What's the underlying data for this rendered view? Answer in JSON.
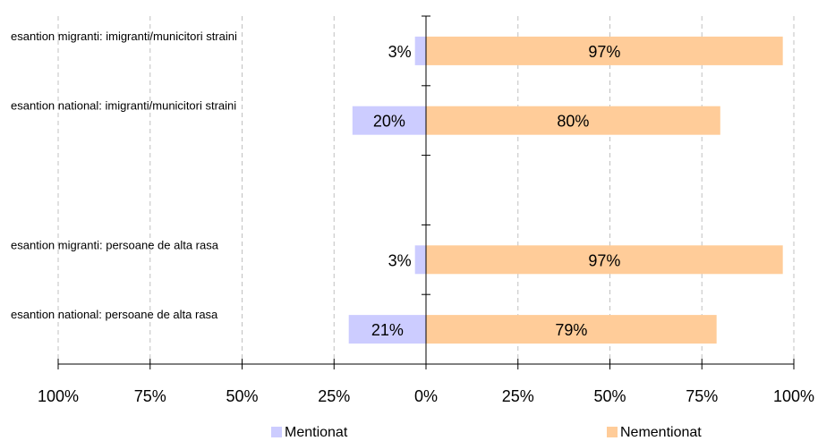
{
  "chart_data": {
    "type": "bar",
    "orientation": "horizontal-diverging",
    "categories": [
      "esantion migranti: imigranti/municitori straini",
      "esantion national: imigranti/municitori straini",
      "",
      "esantion migranti: persoane de alta rasa",
      "esantion national: persoane de alta rasa"
    ],
    "series": [
      {
        "name": "Mentionat",
        "color": "#ccccff",
        "values": [
          3,
          20,
          null,
          3,
          21
        ]
      },
      {
        "name": "Nementionat",
        "color": "#ffcc99",
        "values": [
          97,
          80,
          null,
          97,
          79
        ]
      }
    ],
    "value_labels": {
      "Mentionat": [
        "3%",
        "20%",
        "",
        "3%",
        "21%"
      ],
      "Nementionat": [
        "97%",
        "80%",
        "",
        "97%",
        "79%"
      ]
    },
    "x_ticks": [
      -100,
      -75,
      -50,
      -25,
      0,
      25,
      50,
      75,
      100
    ],
    "x_tick_labels": [
      "100%",
      "75%",
      "50%",
      "25%",
      "0%",
      "25%",
      "50%",
      "75%",
      "100%"
    ],
    "xlim": [
      -100,
      100
    ],
    "title": "",
    "xlabel": "",
    "ylabel": "",
    "grid": "vertical dashed",
    "legend": {
      "placement": "bottom",
      "entries": [
        "Mentionat",
        "Nementionat"
      ]
    }
  }
}
